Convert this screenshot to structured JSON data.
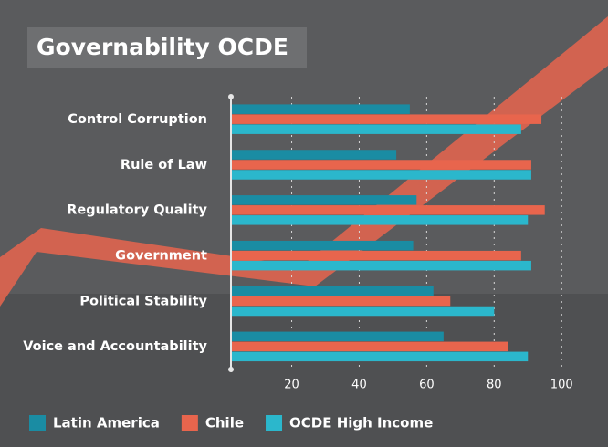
{
  "chart_data": {
    "type": "hbar",
    "title": "Governability OCDE",
    "categories": [
      "Control Corruption",
      "Rule of Law",
      "Regulatory Quality",
      "Government",
      "Political Stability",
      "Voice and Accountability"
    ],
    "series": [
      {
        "name": "Latin America",
        "color": "#1a8ca3",
        "values": [
          55,
          51,
          57,
          56,
          62,
          65
        ]
      },
      {
        "name": "Chile",
        "color": "#e8654d",
        "values": [
          94,
          91,
          95,
          88,
          67,
          84
        ]
      },
      {
        "name": "OCDE High Income",
        "color": "#2bb7cc",
        "values": [
          88,
          91,
          90,
          91,
          80,
          90
        ]
      }
    ],
    "xlim": [
      2,
      104
    ],
    "xticks": [
      20,
      40,
      60,
      80,
      100
    ],
    "grid": true
  }
}
